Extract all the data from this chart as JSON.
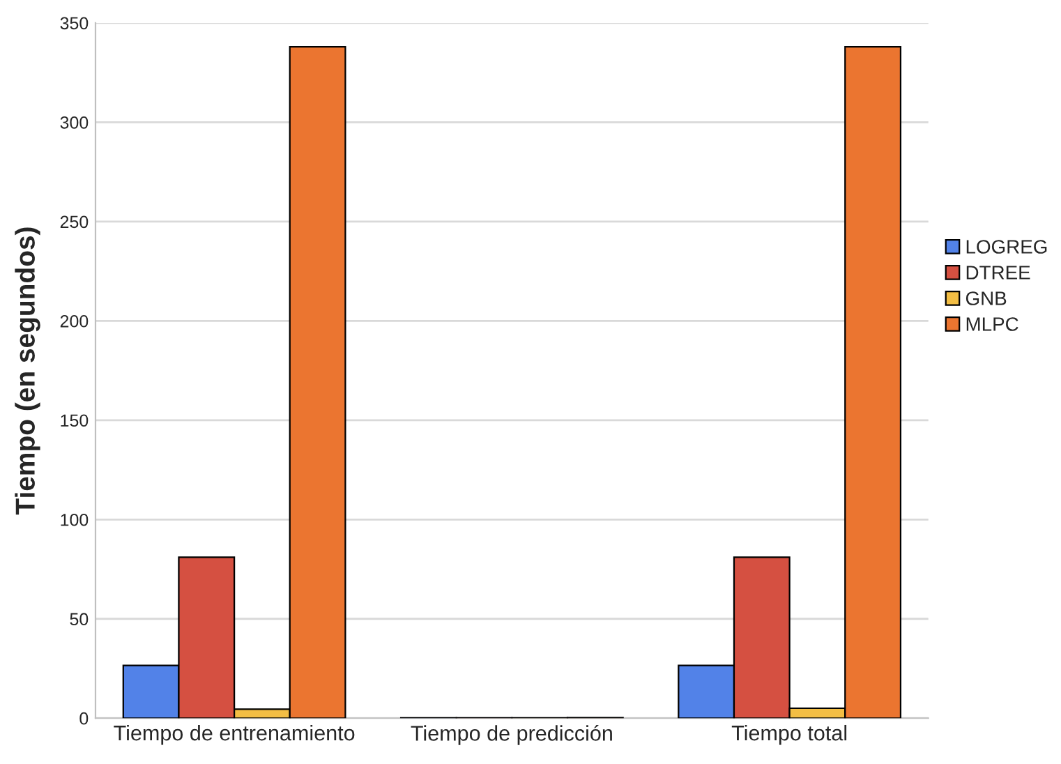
{
  "chart_data": {
    "type": "bar",
    "ylabel": "Tiempo (en segundos)",
    "categories": [
      "Tiempo de entrenamiento",
      "Tiempo de predicción",
      "Tiempo total"
    ],
    "series": [
      {
        "name": "LOGREG",
        "color": "#5282e8",
        "values": [
          26.5,
          0.1,
          26.5
        ]
      },
      {
        "name": "DTREE",
        "color": "#d55041",
        "values": [
          81,
          0.1,
          81
        ]
      },
      {
        "name": "GNB",
        "color": "#f3be44",
        "values": [
          4.5,
          0.1,
          5
        ]
      },
      {
        "name": "MLPC",
        "color": "#eb7530",
        "values": [
          338,
          0.2,
          338
        ]
      }
    ],
    "ylim": [
      0,
      350
    ],
    "yticks": [
      0,
      50,
      100,
      150,
      200,
      250,
      300,
      350
    ],
    "grid": "y",
    "legend": "right"
  }
}
